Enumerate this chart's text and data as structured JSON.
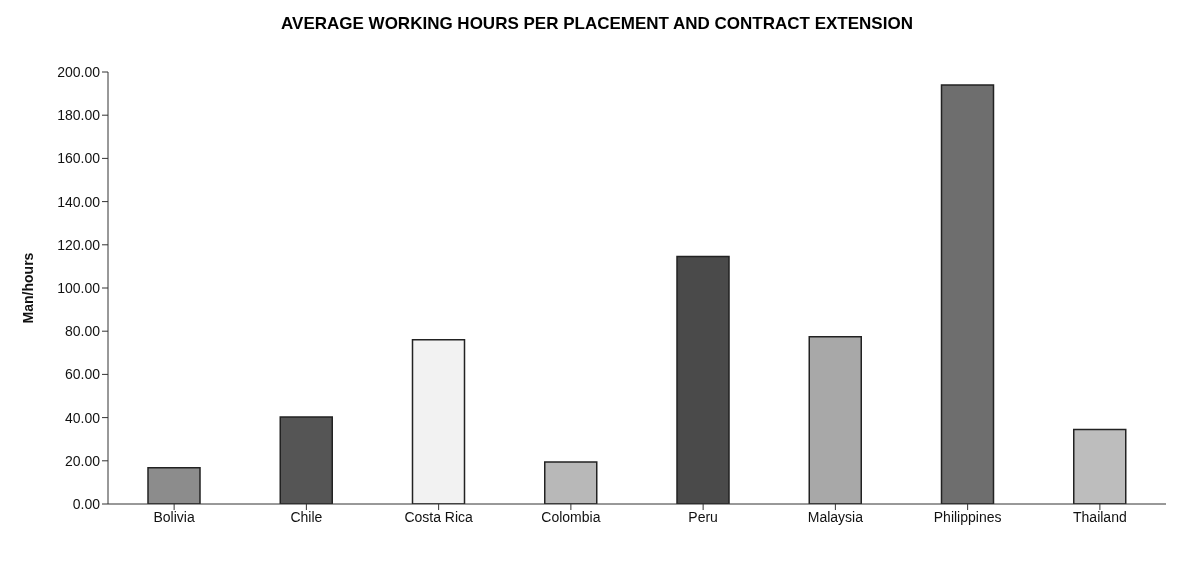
{
  "chart_data": {
    "type": "bar",
    "title": "AVERAGE WORKING HOURS PER PLACEMENT AND CONTRACT EXTENSION",
    "ylabel": "Man/hours",
    "categories": [
      "Bolivia",
      "Chile",
      "Costa Rica",
      "Colombia",
      "Peru",
      "Malaysia",
      "Philippines",
      "Thailand"
    ],
    "values": [
      16.8,
      40.3,
      76,
      19.5,
      114.6,
      77.4,
      194,
      34.5
    ],
    "colors": [
      "#8c8c8c",
      "#555555",
      "#f2f2f2",
      "#b8b8b8",
      "#4a4a4a",
      "#a8a8a8",
      "#6e6e6e",
      "#bdbdbd"
    ],
    "ylim": [
      0,
      200
    ],
    "yticks": [
      {
        "value": 0,
        "label": "0.00"
      },
      {
        "value": 20,
        "label": "20.00"
      },
      {
        "value": 40,
        "label": "40.00"
      },
      {
        "value": 60,
        "label": "60.00"
      },
      {
        "value": 80,
        "label": "80.00"
      },
      {
        "value": 100,
        "label": "100.00"
      },
      {
        "value": 120,
        "label": "120.00"
      },
      {
        "value": 140,
        "label": "140.00"
      },
      {
        "value": 160,
        "label": "160.00"
      },
      {
        "value": 180,
        "label": "180.00"
      },
      {
        "value": 200,
        "label": "200.00"
      }
    ],
    "grid": false,
    "legend": false
  }
}
